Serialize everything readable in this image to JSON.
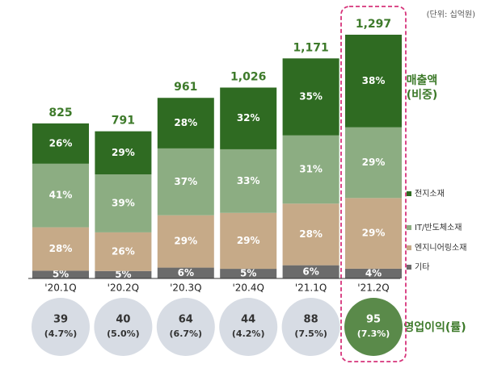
{
  "chart_data": {
    "type": "stacked_bar",
    "unit_note": "(단위: 십억원)",
    "legend_title": "매출액",
    "legend_subtitle": "(비중)",
    "categories": [
      "'20.1Q",
      "'20.2Q",
      "'20.3Q",
      "'20.4Q",
      "'21.1Q",
      "'21.2Q"
    ],
    "highlight": "'21.2Q",
    "highlight_color": "#d6337a",
    "totals": {
      "values": [
        825,
        791,
        961,
        1026,
        1171,
        1297
      ],
      "value_labels": [
        "825",
        "791",
        "961",
        "1,026",
        "1,171",
        "1,297"
      ],
      "color": "#3d7a2a"
    },
    "series": [
      {
        "name": "기타",
        "color": "#6b6b6b",
        "values": [
          5,
          5,
          6,
          5,
          6,
          4
        ],
        "value_labels": [
          "5%",
          "5%",
          "6%",
          "5%",
          "6%",
          "4%"
        ]
      },
      {
        "name": "엔지니어링소재",
        "color": "#c6aa88",
        "values": [
          28,
          26,
          29,
          29,
          28,
          29
        ],
        "value_labels": [
          "28%",
          "26%",
          "29%",
          "29%",
          "28%",
          "29%"
        ]
      },
      {
        "name": "IT/반도체소재",
        "color": "#8cad82",
        "values": [
          41,
          39,
          37,
          33,
          31,
          29
        ],
        "value_labels": [
          "41%",
          "39%",
          "37%",
          "33%",
          "31%",
          "29%"
        ]
      },
      {
        "name": "전지소재",
        "color": "#2f6b22",
        "values": [
          26,
          29,
          28,
          32,
          35,
          38
        ],
        "value_labels": [
          "26%",
          "29%",
          "28%",
          "32%",
          "35%",
          "38%"
        ]
      }
    ],
    "profit": {
      "title": "영업이익(률)",
      "color": "#d7dce4",
      "highlight_color": "#5a8a4a",
      "values": [
        39,
        40,
        64,
        44,
        88,
        95
      ],
      "margin": {
        "values": [
          4.7,
          5.0,
          6.7,
          4.2,
          7.5,
          7.3
        ],
        "value_labels": [
          "(4.7%)",
          "(5.0%)",
          "(6.7%)",
          "(4.2%)",
          "(7.5%)",
          "(7.3%)"
        ]
      }
    }
  }
}
